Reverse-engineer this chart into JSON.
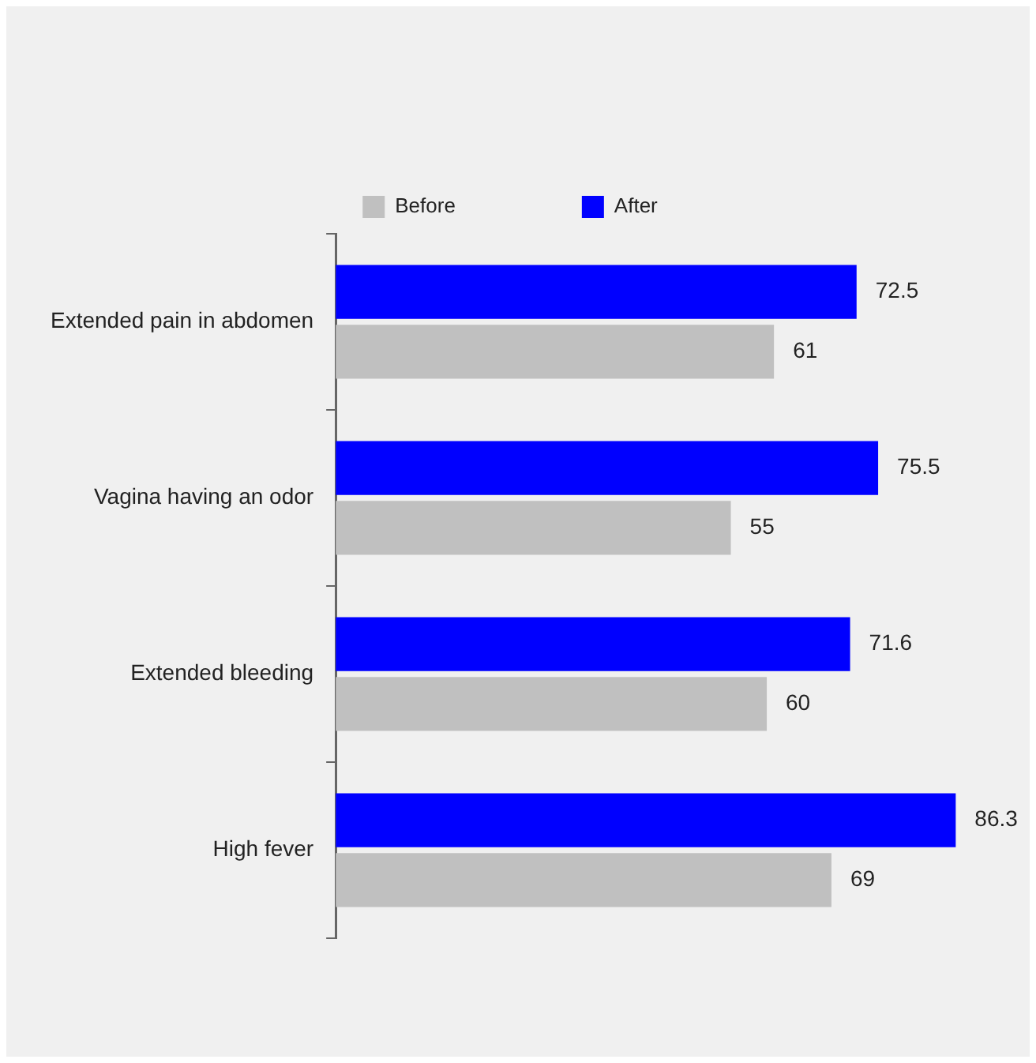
{
  "chart_data": {
    "type": "bar",
    "orientation": "horizontal",
    "categories": [
      "Extended pain in abdomen",
      "Vagina having an odor",
      "Extended bleeding",
      "High fever"
    ],
    "series": [
      {
        "name": "Before",
        "color": "#c0c0c0",
        "values": [
          61,
          55,
          60,
          69
        ]
      },
      {
        "name": "After",
        "color": "#0000ff",
        "values": [
          72.5,
          75.5,
          71.6,
          86.3
        ]
      }
    ],
    "data_labels": true,
    "legend": "top"
  }
}
